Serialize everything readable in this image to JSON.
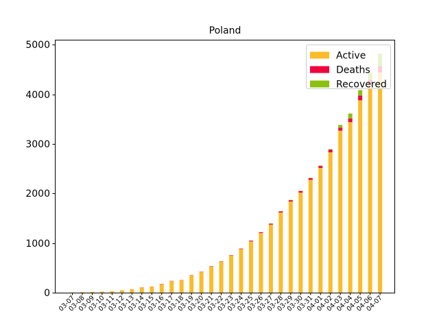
{
  "chart_data": {
    "type": "bar",
    "stacked": true,
    "title": "Poland",
    "xlabel": "",
    "ylabel": "",
    "ylim": [
      0,
      5100
    ],
    "yticks": [
      0,
      1000,
      2000,
      3000,
      4000,
      5000
    ],
    "grid": false,
    "legend_position": "top-right",
    "categories": [
      "03-07",
      "03-08",
      "03-09",
      "03-10",
      "03-11",
      "03-12",
      "03-13",
      "03-14",
      "03-15",
      "03-16",
      "03-17",
      "03-18",
      "03-19",
      "03-20",
      "03-21",
      "03-22",
      "03-23",
      "03-24",
      "03-25",
      "03-26",
      "03-27",
      "03-28",
      "03-29",
      "03-30",
      "03-31",
      "04-01",
      "04-02",
      "04-03",
      "04-04",
      "04-05",
      "04-06",
      "04-07"
    ],
    "series": [
      {
        "name": "Active",
        "color": "#fbbc2a",
        "values": [
          5,
          11,
          16,
          22,
          31,
          49,
          68,
          103,
          119,
          171,
          233,
          248,
          349,
          419,
          526,
          625,
          747,
          880,
          1036,
          1203,
          1372,
          1615,
          1838,
          2018,
          2276,
          2515,
          2830,
          3267,
          3438,
          3879,
          4193,
          4441
        ]
      },
      {
        "name": "Deaths",
        "color": "#f0023c",
        "values": [
          0,
          0,
          0,
          0,
          0,
          1,
          2,
          3,
          3,
          5,
          5,
          5,
          5,
          5,
          7,
          7,
          8,
          10,
          14,
          16,
          18,
          22,
          26,
          31,
          33,
          37,
          52,
          60,
          74,
          94,
          98,
          123
        ]
      },
      {
        "name": "Recovered",
        "color": "#8bc010",
        "values": [
          0,
          0,
          0,
          0,
          0,
          0,
          0,
          0,
          0,
          0,
          0,
          0,
          0,
          0,
          0,
          1,
          1,
          1,
          1,
          1,
          7,
          7,
          7,
          7,
          7,
          13,
          13,
          56,
          100,
          112,
          150,
          257
        ]
      }
    ]
  }
}
